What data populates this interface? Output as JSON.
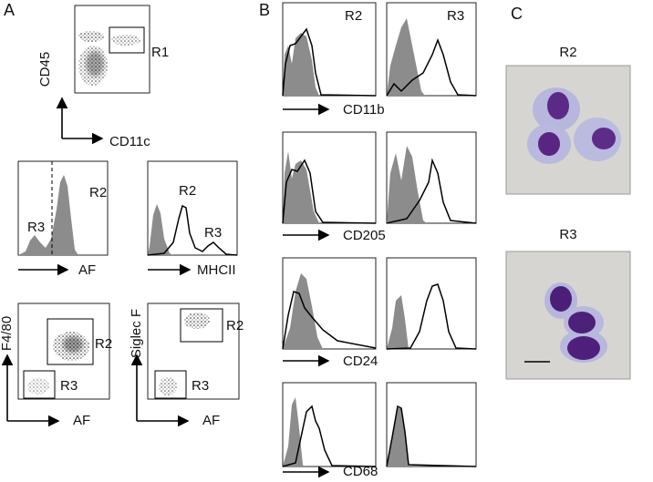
{
  "panels": {
    "A": {
      "label": "A",
      "gate_plot": {
        "y_axis": "CD45",
        "x_axis": "CD11c",
        "gate": "R1"
      },
      "af_histogram": {
        "x_axis": "AF",
        "peaks": [
          "R3",
          "R2"
        ]
      },
      "mhc_histogram": {
        "x_axis": "MHCII",
        "peaks": [
          "R2",
          "R3"
        ]
      },
      "f480_plot": {
        "y_axis": "F4/80",
        "x_axis": "AF",
        "gates": [
          "R2",
          "R3"
        ]
      },
      "siglec_plot": {
        "y_axis": "Siglec F",
        "x_axis": "AF",
        "gates": [
          "R2",
          "R3"
        ]
      }
    },
    "B": {
      "label": "B",
      "columns": [
        "R2",
        "R3"
      ],
      "markers": [
        "CD11b",
        "CD205",
        "CD24",
        "CD68"
      ]
    },
    "C": {
      "label": "C",
      "images": [
        "R2",
        "R3"
      ]
    }
  }
}
